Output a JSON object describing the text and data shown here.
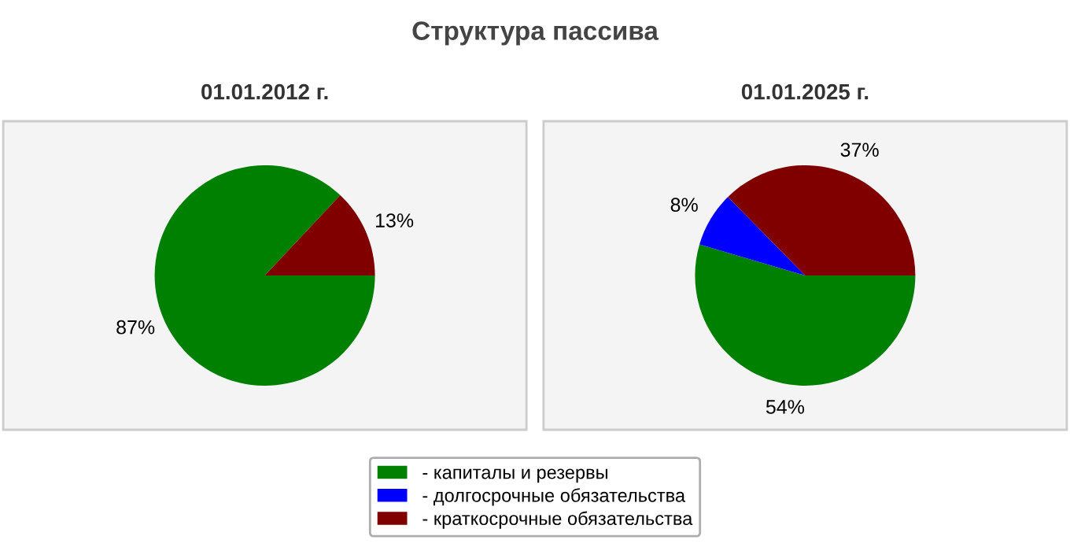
{
  "chart_data": [
    {
      "type": "pie",
      "title": "Структура пассива",
      "subtitle": "01.01.2012 г.",
      "categories": [
        "- капиталы и резервы",
        "- долгосрочные обязательства",
        "- краткосрочные обязательства"
      ],
      "values": [
        87,
        0,
        13
      ],
      "value_labels": [
        "87%",
        null,
        "13%"
      ],
      "colors": [
        "#008000",
        "#0000ff",
        "#800000"
      ],
      "legend": "bottom"
    },
    {
      "type": "pie",
      "subtitle": "01.01.2025 г.",
      "categories": [
        null,
        null,
        null
      ],
      "values": [
        54,
        8,
        37
      ],
      "value_labels": [
        "54%",
        "8%",
        "37%"
      ],
      "colors": [
        "#008000",
        "#0000ff",
        "#800000"
      ]
    }
  ]
}
